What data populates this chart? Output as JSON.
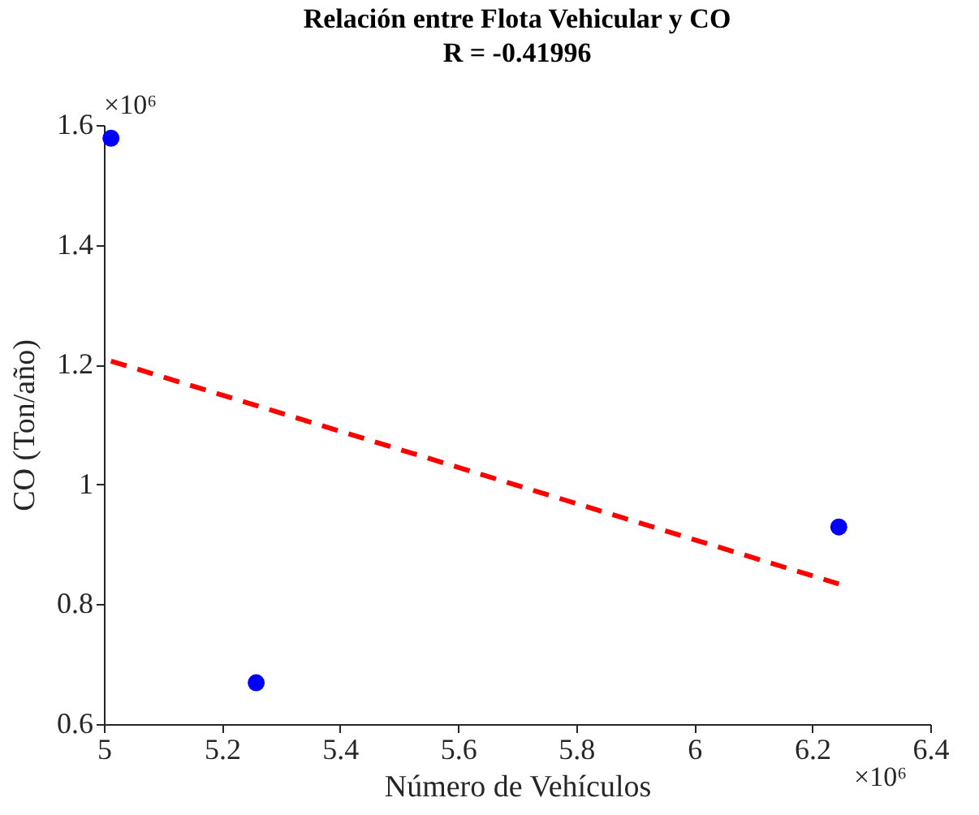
{
  "chart_data": {
    "type": "scatter",
    "title": "Relación entre Flota Vehicular y CO",
    "subtitle": "R = -0.41996",
    "xlabel": "Número de Vehículos",
    "ylabel": "CO (Ton/año)",
    "series": [
      {
        "color": "#0000ff",
        "marker": "circle",
        "x": [
          5.012,
          5.258,
          6.245
        ],
        "values": [
          1.578,
          0.669,
          0.929
        ]
      },
      {
        "type": "line",
        "color": "#ff0000",
        "line_style": "dashed",
        "x": [
          5.012,
          6.245
        ],
        "values": [
          1.206,
          0.834
        ]
      }
    ],
    "xlim": [
      5,
      6.4
    ],
    "xticks": [
      5,
      5.2,
      5.4,
      5.6,
      5.8,
      6,
      6.2,
      6.4
    ],
    "ylim": [
      0.6,
      1.6
    ],
    "yticks": [
      0.6,
      0.8,
      1,
      1.2,
      1.4,
      1.6
    ],
    "annotations": [
      "×10⁶",
      "×10⁶"
    ],
    "grid": false
  }
}
